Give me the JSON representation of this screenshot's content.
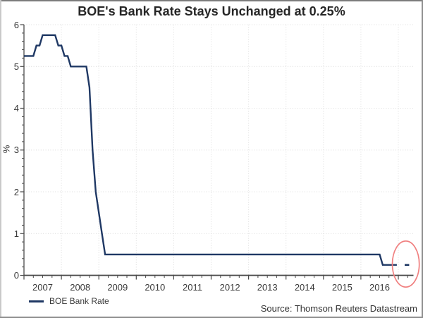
{
  "chart_data": {
    "type": "line",
    "title": "BOE's Bank Rate Stays Unchanged at 0.25%",
    "ylabel": "%",
    "source_note": "Source: Thomson Reuters Datastream",
    "ylim": [
      0,
      6
    ],
    "xlim": [
      2007,
      2017.4
    ],
    "y_tick_values": [
      0,
      1,
      2,
      3,
      4,
      5,
      6
    ],
    "y_tick_labels": [
      "0",
      "1",
      "2",
      "3",
      "4",
      "5",
      "6"
    ],
    "y_minor_step": 0.2,
    "x_tick_label_years": [
      "2007",
      "2008",
      "2009",
      "2010",
      "2011",
      "2012",
      "2013",
      "2014",
      "2015",
      "2016"
    ],
    "x_gridline_years": [
      2008,
      2009,
      2010,
      2011,
      2012,
      2013,
      2014,
      2015,
      2016,
      2017
    ],
    "x_minor_step_years": 0.25,
    "grid_style": "dotted",
    "legend": {
      "position": "bottom-left",
      "entries": [
        {
          "label": "BOE Bank Rate",
          "color": "#1f3864"
        }
      ]
    },
    "series": [
      {
        "name": "BOE Bank Rate",
        "color": "#1f3864",
        "points": [
          [
            2007.0,
            5.25
          ],
          [
            2007.25,
            5.25
          ],
          [
            2007.333,
            5.5
          ],
          [
            2007.417,
            5.5
          ],
          [
            2007.5,
            5.75
          ],
          [
            2007.833,
            5.75
          ],
          [
            2007.917,
            5.5
          ],
          [
            2008.0,
            5.5
          ],
          [
            2008.083,
            5.25
          ],
          [
            2008.167,
            5.25
          ],
          [
            2008.25,
            5.0
          ],
          [
            2008.667,
            5.0
          ],
          [
            2008.75,
            4.5
          ],
          [
            2008.833,
            3.0
          ],
          [
            2008.917,
            2.0
          ],
          [
            2009.0,
            1.5
          ],
          [
            2009.083,
            1.0
          ],
          [
            2009.167,
            0.5
          ],
          [
            2016.5,
            0.5
          ],
          [
            2016.583,
            0.25
          ],
          [
            2016.96,
            0.25
          ]
        ]
      }
    ],
    "latest_detached_segment": {
      "color": "#1f3864",
      "points": [
        [
          2017.17,
          0.25
        ],
        [
          2017.29,
          0.25
        ]
      ]
    },
    "annotation": {
      "shape": "ellipse",
      "cx_year": 2017.2,
      "cy_value": 0.27,
      "rx_years": 0.36,
      "ry_values": 0.55,
      "color": "#f08080"
    }
  },
  "colors": {
    "line": "#1f3864",
    "grid": "#dcdcdc",
    "axis": "#4a4a4a",
    "tick_text": "#3a3a3a",
    "title_text": "#262626",
    "annotation": "#f08080"
  }
}
